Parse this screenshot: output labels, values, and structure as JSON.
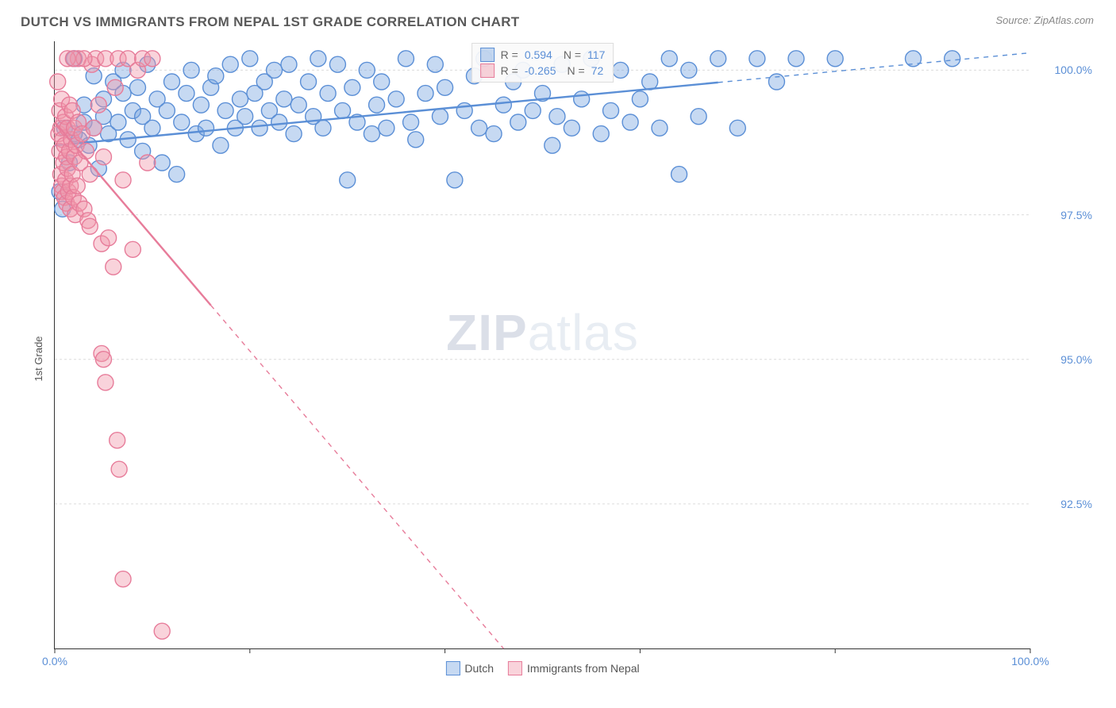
{
  "header": {
    "title": "DUTCH VS IMMIGRANTS FROM NEPAL 1ST GRADE CORRELATION CHART",
    "source": "Source: ZipAtlas.com"
  },
  "chart": {
    "type": "scatter",
    "ylabel": "1st Grade",
    "watermark": "ZIPatlas",
    "background": "#ffffff",
    "grid_color": "#dcdcdc",
    "axis_color": "#333333",
    "tick_label_color": "#5B8FD6",
    "xlim": [
      0,
      100
    ],
    "ylim": [
      90,
      100.5
    ],
    "yticks": [
      92.5,
      95.0,
      97.5,
      100.0
    ],
    "ytick_labels": [
      "92.5%",
      "95.0%",
      "97.5%",
      "100.0%"
    ],
    "xticks": [
      0,
      20,
      40,
      60,
      80,
      100
    ],
    "xtick_labels_shown": {
      "0": "0.0%",
      "100": "100.0%"
    },
    "marker_radius": 10,
    "marker_stroke_width": 1.4,
    "line_width_solid": 2.4,
    "series": [
      {
        "name": "Dutch",
        "fill": "rgba(120,165,225,0.42)",
        "stroke": "#5B8FD6",
        "R": "0.594",
        "N": "117",
        "trend": {
          "x1": 0,
          "y1": 98.7,
          "x2": 100,
          "y2": 100.3,
          "solid_to_x": 68
        },
        "points": [
          [
            0.5,
            97.9
          ],
          [
            1,
            99.0
          ],
          [
            1.5,
            98.4
          ],
          [
            2,
            98.9
          ],
          [
            2,
            100.2
          ],
          [
            2.5,
            98.8
          ],
          [
            3,
            99.4
          ],
          [
            3,
            99.1
          ],
          [
            3.5,
            98.7
          ],
          [
            4,
            99.9
          ],
          [
            4,
            99.0
          ],
          [
            4.5,
            98.3
          ],
          [
            5,
            99.5
          ],
          [
            5,
            99.2
          ],
          [
            5.5,
            98.9
          ],
          [
            6,
            99.8
          ],
          [
            6.5,
            99.1
          ],
          [
            7,
            99.6
          ],
          [
            7,
            100.0
          ],
          [
            7.5,
            98.8
          ],
          [
            8,
            99.3
          ],
          [
            8.5,
            99.7
          ],
          [
            9,
            98.6
          ],
          [
            9,
            99.2
          ],
          [
            9.5,
            100.1
          ],
          [
            10,
            99.0
          ],
          [
            10.5,
            99.5
          ],
          [
            11,
            98.4
          ],
          [
            11.5,
            99.3
          ],
          [
            12,
            99.8
          ],
          [
            12.5,
            98.2
          ],
          [
            13,
            99.1
          ],
          [
            13.5,
            99.6
          ],
          [
            14,
            100.0
          ],
          [
            14.5,
            98.9
          ],
          [
            15,
            99.4
          ],
          [
            15.5,
            99.0
          ],
          [
            16,
            99.7
          ],
          [
            16.5,
            99.9
          ],
          [
            17,
            98.7
          ],
          [
            17.5,
            99.3
          ],
          [
            18,
            100.1
          ],
          [
            18.5,
            99.0
          ],
          [
            19,
            99.5
          ],
          [
            19.5,
            99.2
          ],
          [
            20,
            100.2
          ],
          [
            20.5,
            99.6
          ],
          [
            21,
            99.0
          ],
          [
            21.5,
            99.8
          ],
          [
            22,
            99.3
          ],
          [
            22.5,
            100.0
          ],
          [
            23,
            99.1
          ],
          [
            23.5,
            99.5
          ],
          [
            24,
            100.1
          ],
          [
            24.5,
            98.9
          ],
          [
            25,
            99.4
          ],
          [
            26,
            99.8
          ],
          [
            26.5,
            99.2
          ],
          [
            27,
            100.2
          ],
          [
            27.5,
            99.0
          ],
          [
            28,
            99.6
          ],
          [
            29,
            100.1
          ],
          [
            29.5,
            99.3
          ],
          [
            30,
            98.1
          ],
          [
            30.5,
            99.7
          ],
          [
            31,
            99.1
          ],
          [
            32,
            100.0
          ],
          [
            32.5,
            98.9
          ],
          [
            33,
            99.4
          ],
          [
            33.5,
            99.8
          ],
          [
            34,
            99.0
          ],
          [
            35,
            99.5
          ],
          [
            36,
            100.2
          ],
          [
            36.5,
            99.1
          ],
          [
            37,
            98.8
          ],
          [
            38,
            99.6
          ],
          [
            39,
            100.1
          ],
          [
            39.5,
            99.2
          ],
          [
            40,
            99.7
          ],
          [
            41,
            98.1
          ],
          [
            42,
            99.3
          ],
          [
            43,
            99.9
          ],
          [
            43.5,
            99.0
          ],
          [
            44,
            100.2
          ],
          [
            45,
            98.9
          ],
          [
            46,
            99.4
          ],
          [
            47,
            99.8
          ],
          [
            47.5,
            99.1
          ],
          [
            48,
            100.0
          ],
          [
            49,
            99.3
          ],
          [
            50,
            99.6
          ],
          [
            51,
            98.7
          ],
          [
            51.5,
            99.2
          ],
          [
            52,
            100.1
          ],
          [
            53,
            99.0
          ],
          [
            54,
            99.5
          ],
          [
            55,
            100.2
          ],
          [
            56,
            98.9
          ],
          [
            57,
            99.3
          ],
          [
            58,
            100.0
          ],
          [
            59,
            99.1
          ],
          [
            60,
            99.5
          ],
          [
            61,
            99.8
          ],
          [
            62,
            99.0
          ],
          [
            63,
            100.2
          ],
          [
            64,
            98.2
          ],
          [
            65,
            100.0
          ],
          [
            66,
            99.2
          ],
          [
            68,
            100.2
          ],
          [
            70,
            99.0
          ],
          [
            72,
            100.2
          ],
          [
            74,
            99.8
          ],
          [
            76,
            100.2
          ],
          [
            80,
            100.2
          ],
          [
            88,
            100.2
          ],
          [
            92,
            100.2
          ],
          [
            0.8,
            97.6
          ]
        ]
      },
      {
        "name": "Immigrants from Nepal",
        "fill": "rgba(240,150,170,0.42)",
        "stroke": "#E77C9A",
        "R": "-0.265",
        "N": "72",
        "trend": {
          "x1": 0,
          "y1": 99.1,
          "x2": 46,
          "y2": 90.0,
          "solid_to_x": 16
        },
        "points": [
          [
            0.3,
            99.8
          ],
          [
            0.4,
            98.9
          ],
          [
            0.5,
            99.3
          ],
          [
            0.5,
            98.6
          ],
          [
            0.6,
            99.0
          ],
          [
            0.6,
            98.2
          ],
          [
            0.7,
            99.5
          ],
          [
            0.7,
            98.0
          ],
          [
            0.8,
            98.8
          ],
          [
            0.8,
            97.9
          ],
          [
            0.9,
            99.1
          ],
          [
            0.9,
            98.4
          ],
          [
            1.0,
            98.7
          ],
          [
            1.0,
            97.8
          ],
          [
            1.1,
            99.2
          ],
          [
            1.1,
            98.1
          ],
          [
            1.2,
            98.5
          ],
          [
            1.2,
            97.7
          ],
          [
            1.3,
            99.0
          ],
          [
            1.3,
            98.3
          ],
          [
            1.4,
            97.9
          ],
          [
            1.5,
            98.6
          ],
          [
            1.5,
            99.4
          ],
          [
            1.6,
            98.0
          ],
          [
            1.6,
            97.6
          ],
          [
            1.7,
            98.8
          ],
          [
            1.8,
            98.2
          ],
          [
            1.8,
            99.3
          ],
          [
            1.9,
            97.8
          ],
          [
            2.0,
            98.5
          ],
          [
            2.0,
            99.0
          ],
          [
            2.1,
            97.5
          ],
          [
            2.2,
            98.7
          ],
          [
            2.3,
            98.0
          ],
          [
            2.4,
            99.1
          ],
          [
            2.5,
            97.7
          ],
          [
            2.6,
            98.4
          ],
          [
            2.8,
            98.9
          ],
          [
            3.0,
            97.6
          ],
          [
            3.2,
            98.6
          ],
          [
            3.4,
            97.4
          ],
          [
            3.6,
            98.2
          ],
          [
            3.8,
            100.1
          ],
          [
            4.0,
            99.0
          ],
          [
            4.2,
            100.2
          ],
          [
            4.5,
            99.4
          ],
          [
            4.8,
            97.0
          ],
          [
            5.0,
            98.5
          ],
          [
            5.2,
            100.2
          ],
          [
            5.5,
            97.1
          ],
          [
            6.0,
            96.6
          ],
          [
            6.2,
            99.7
          ],
          [
            6.5,
            100.2
          ],
          [
            7.0,
            98.1
          ],
          [
            7.5,
            100.2
          ],
          [
            8.0,
            96.9
          ],
          [
            8.5,
            100.0
          ],
          [
            9.0,
            100.2
          ],
          [
            9.5,
            98.4
          ],
          [
            10,
            100.2
          ],
          [
            4.8,
            95.1
          ],
          [
            5.0,
            95.0
          ],
          [
            5.2,
            94.6
          ],
          [
            6.4,
            93.6
          ],
          [
            6.6,
            93.1
          ],
          [
            7.0,
            91.2
          ],
          [
            11.0,
            90.3
          ],
          [
            2.4,
            100.2
          ],
          [
            3.0,
            100.2
          ],
          [
            3.6,
            97.3
          ],
          [
            1.3,
            100.2
          ],
          [
            1.9,
            100.2
          ]
        ]
      }
    ],
    "stats_legend": {
      "r_label": "R =",
      "n_label": "N ="
    },
    "bottom_legend": {
      "items": [
        "Dutch",
        "Immigrants from Nepal"
      ]
    }
  }
}
